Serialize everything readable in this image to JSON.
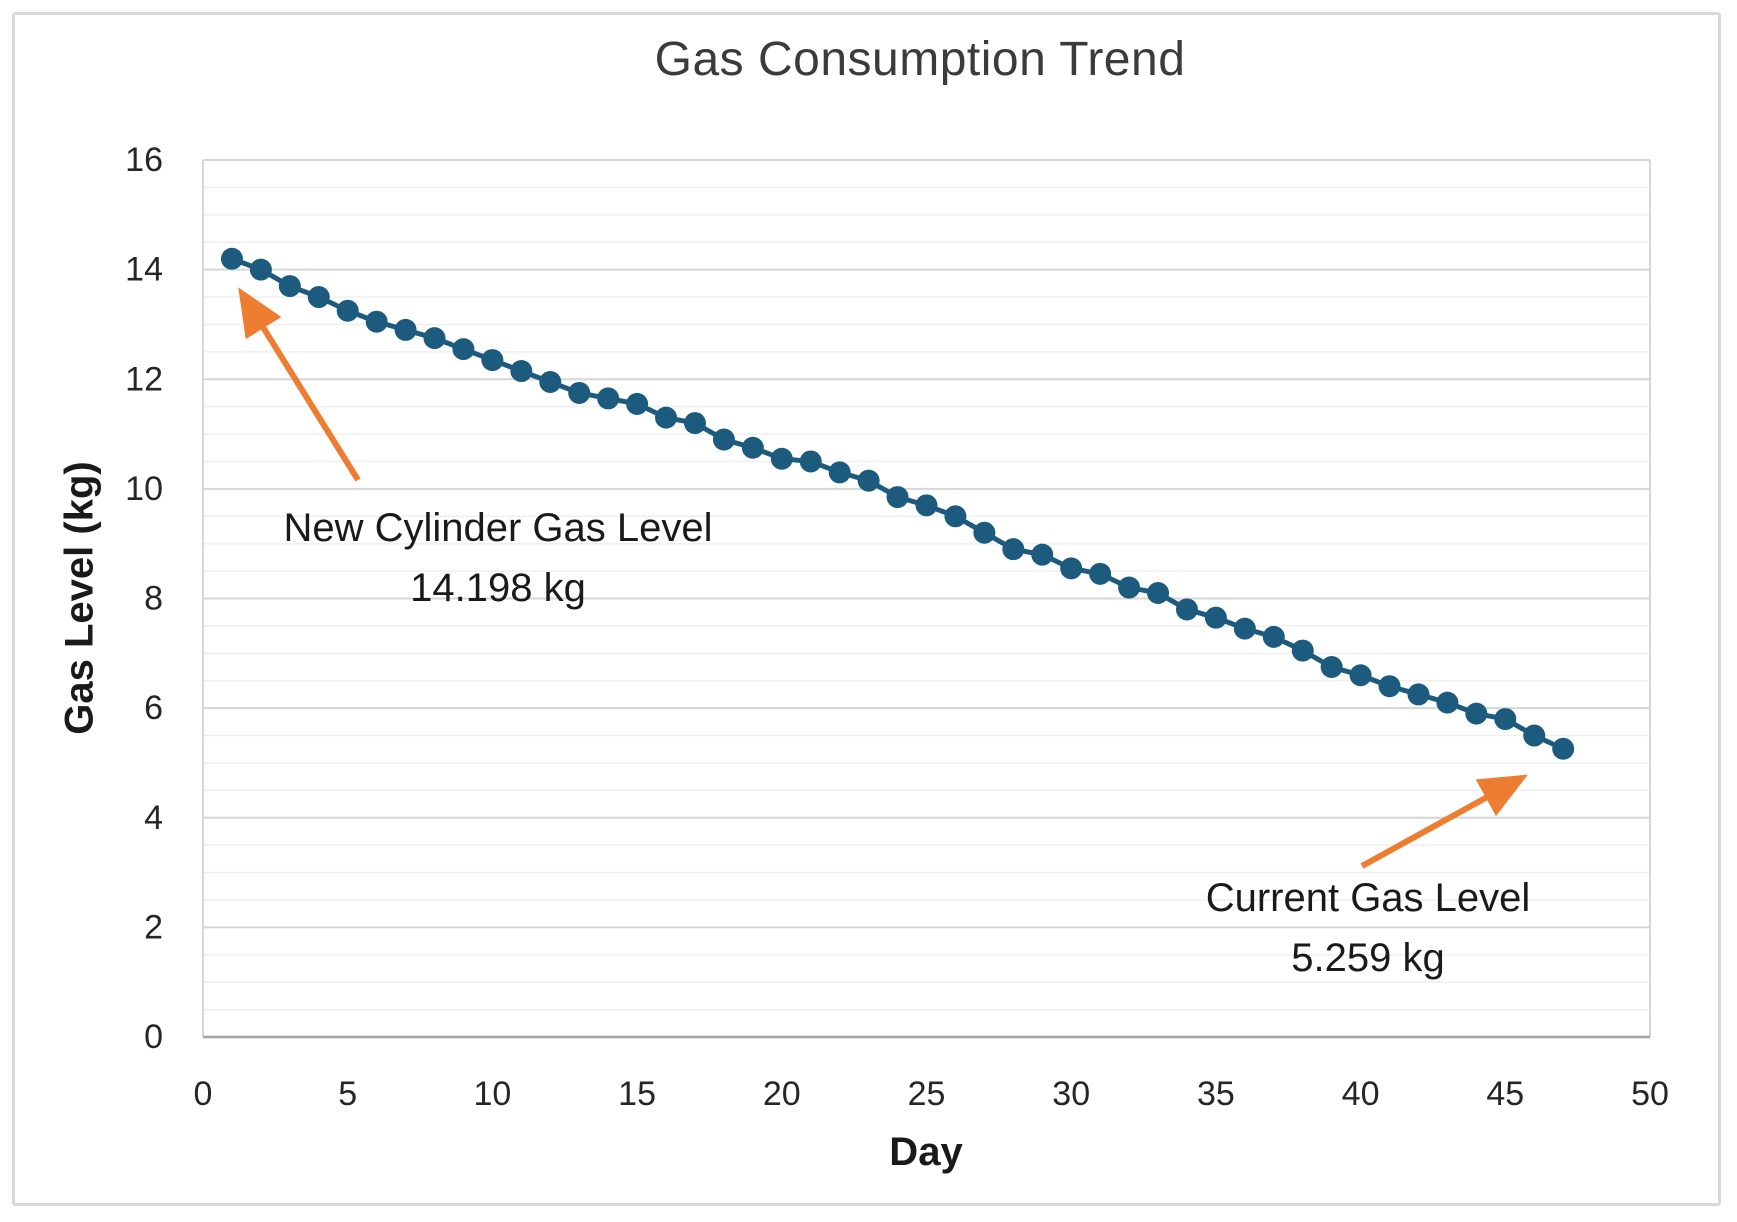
{
  "chart_data": {
    "type": "line",
    "title": "Gas Consumption Trend",
    "xlabel": "Day",
    "ylabel": "Gas Level (kg)",
    "xlim": [
      0,
      50
    ],
    "ylim": [
      0,
      16
    ],
    "x_ticks": [
      0,
      5,
      10,
      15,
      20,
      25,
      30,
      35,
      40,
      45,
      50
    ],
    "y_ticks": [
      0,
      2,
      4,
      6,
      8,
      10,
      12,
      14,
      16
    ],
    "y_minor_step": 0.5,
    "grid": "horizontal major and minor gridlines, no vertical gridlines",
    "legend": "none",
    "marker_style": "filled circle markers connected by line",
    "series": [
      {
        "name": "Gas Level",
        "x": [
          1,
          2,
          3,
          4,
          5,
          6,
          7,
          8,
          9,
          10,
          11,
          12,
          13,
          14,
          15,
          16,
          17,
          18,
          19,
          20,
          21,
          22,
          23,
          24,
          25,
          26,
          27,
          28,
          29,
          30,
          31,
          32,
          33,
          34,
          35,
          36,
          37,
          38,
          39,
          40,
          41,
          42,
          43,
          44,
          45,
          46,
          47
        ],
        "values": [
          14.198,
          14.0,
          13.7,
          13.5,
          13.25,
          13.05,
          12.9,
          12.75,
          12.55,
          12.35,
          12.15,
          11.95,
          11.75,
          11.65,
          11.55,
          11.3,
          11.2,
          10.9,
          10.75,
          10.55,
          10.5,
          10.3,
          10.15,
          9.85,
          9.7,
          9.5,
          9.2,
          8.9,
          8.8,
          8.55,
          8.45,
          8.2,
          8.1,
          7.8,
          7.65,
          7.45,
          7.3,
          7.05,
          6.75,
          6.6,
          6.4,
          6.25,
          6.1,
          5.9,
          5.8,
          5.5,
          5.259
        ]
      }
    ],
    "annotations": [
      {
        "id": "new-cylinder",
        "line1": "New Cylinder Gas Level",
        "line2": "14.198 kg",
        "points_to": {
          "day": 1,
          "value": 14.198
        }
      },
      {
        "id": "current",
        "line1": "Current Gas Level",
        "line2": "5.259 kg",
        "points_to": {
          "day": 47,
          "value": 5.259
        }
      }
    ],
    "colors": {
      "series": "#1c5b7d",
      "arrow": "#ED7D31",
      "grid_major": "#d6d6d6",
      "grid_minor": "#efefef",
      "axis_line": "#a6a6a6",
      "tick_text": "#262626",
      "title_text": "#3b3b3b",
      "frame_border": "#d9d9d9"
    }
  }
}
